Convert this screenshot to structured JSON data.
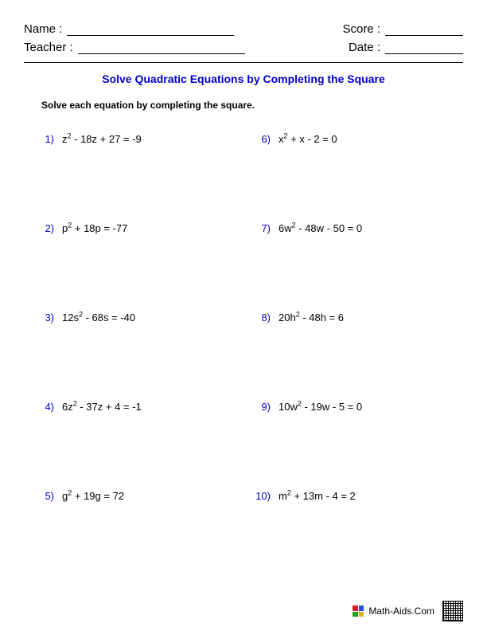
{
  "header": {
    "name_label": "Name :",
    "teacher_label": "Teacher :",
    "score_label": "Score :",
    "date_label": "Date :"
  },
  "title": "Solve Quadratic Equations by Completing the Square",
  "instruction": "Solve each equation by completing the square.",
  "problems": [
    {
      "num": "1)",
      "var": "z",
      "eq_pre": "",
      "eq": " - 18z + 27 = -9"
    },
    {
      "num": "2)",
      "var": "p",
      "eq_pre": "",
      "eq": " + 18p = -77"
    },
    {
      "num": "3)",
      "var": "s",
      "eq_pre": "12",
      "eq": " - 68s = -40"
    },
    {
      "num": "4)",
      "var": "z",
      "eq_pre": "6",
      "eq": " - 37z + 4 = -1"
    },
    {
      "num": "5)",
      "var": "g",
      "eq_pre": "",
      "eq": " + 19g = 72"
    },
    {
      "num": "6)",
      "var": "x",
      "eq_pre": "",
      "eq": " + x - 2 = 0"
    },
    {
      "num": "7)",
      "var": "w",
      "eq_pre": "6",
      "eq": " - 48w - 50 = 0"
    },
    {
      "num": "8)",
      "var": "h",
      "eq_pre": "20",
      "eq": " - 48h = 6"
    },
    {
      "num": "9)",
      "var": "w",
      "eq_pre": "10",
      "eq": " - 19w - 5 = 0"
    },
    {
      "num": "10)",
      "var": "m",
      "eq_pre": "",
      "eq": " + 13m - 4 = 2"
    }
  ],
  "footer": {
    "site": "Math-Aids.Com",
    "icon_colors": [
      "#d42020",
      "#2050d4",
      "#20a020",
      "#e0b020"
    ]
  },
  "colors": {
    "accent": "#0000cc",
    "text": "#000000",
    "background": "#ffffff"
  }
}
